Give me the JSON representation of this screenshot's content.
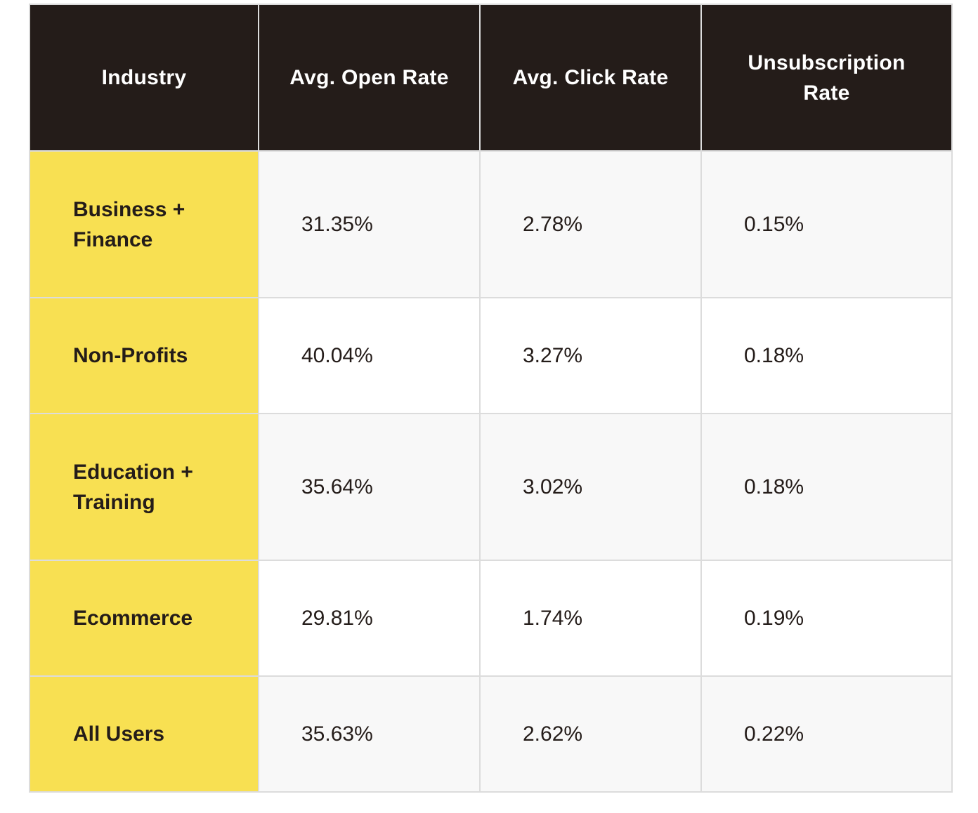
{
  "chart_data": {
    "type": "table",
    "columns": [
      "Industry",
      "Avg. Open Rate",
      "Avg. Click Rate",
      "Unsubscription Rate"
    ],
    "rows": [
      {
        "industry": "Business + Finance",
        "open_rate": "31.35%",
        "click_rate": "2.78%",
        "unsub_rate": "0.15%"
      },
      {
        "industry": "Non-Profits",
        "open_rate": "40.04%",
        "click_rate": "3.27%",
        "unsub_rate": "0.18%"
      },
      {
        "industry": "Education + Training",
        "open_rate": "35.64%",
        "click_rate": "3.02%",
        "unsub_rate": "0.18%"
      },
      {
        "industry": "Ecommerce",
        "open_rate": "29.81%",
        "click_rate": "1.74%",
        "unsub_rate": "0.19%"
      },
      {
        "industry": "All Users",
        "open_rate": "35.63%",
        "click_rate": "2.62%",
        "unsub_rate": "0.22%"
      }
    ],
    "colors": {
      "header_bg": "#241c19",
      "header_text": "#ffffff",
      "industry_bg": "#f8e052",
      "row_alt_bg": "#f8f8f8",
      "row_bg": "#ffffff",
      "border": "#dcdcdc"
    }
  }
}
